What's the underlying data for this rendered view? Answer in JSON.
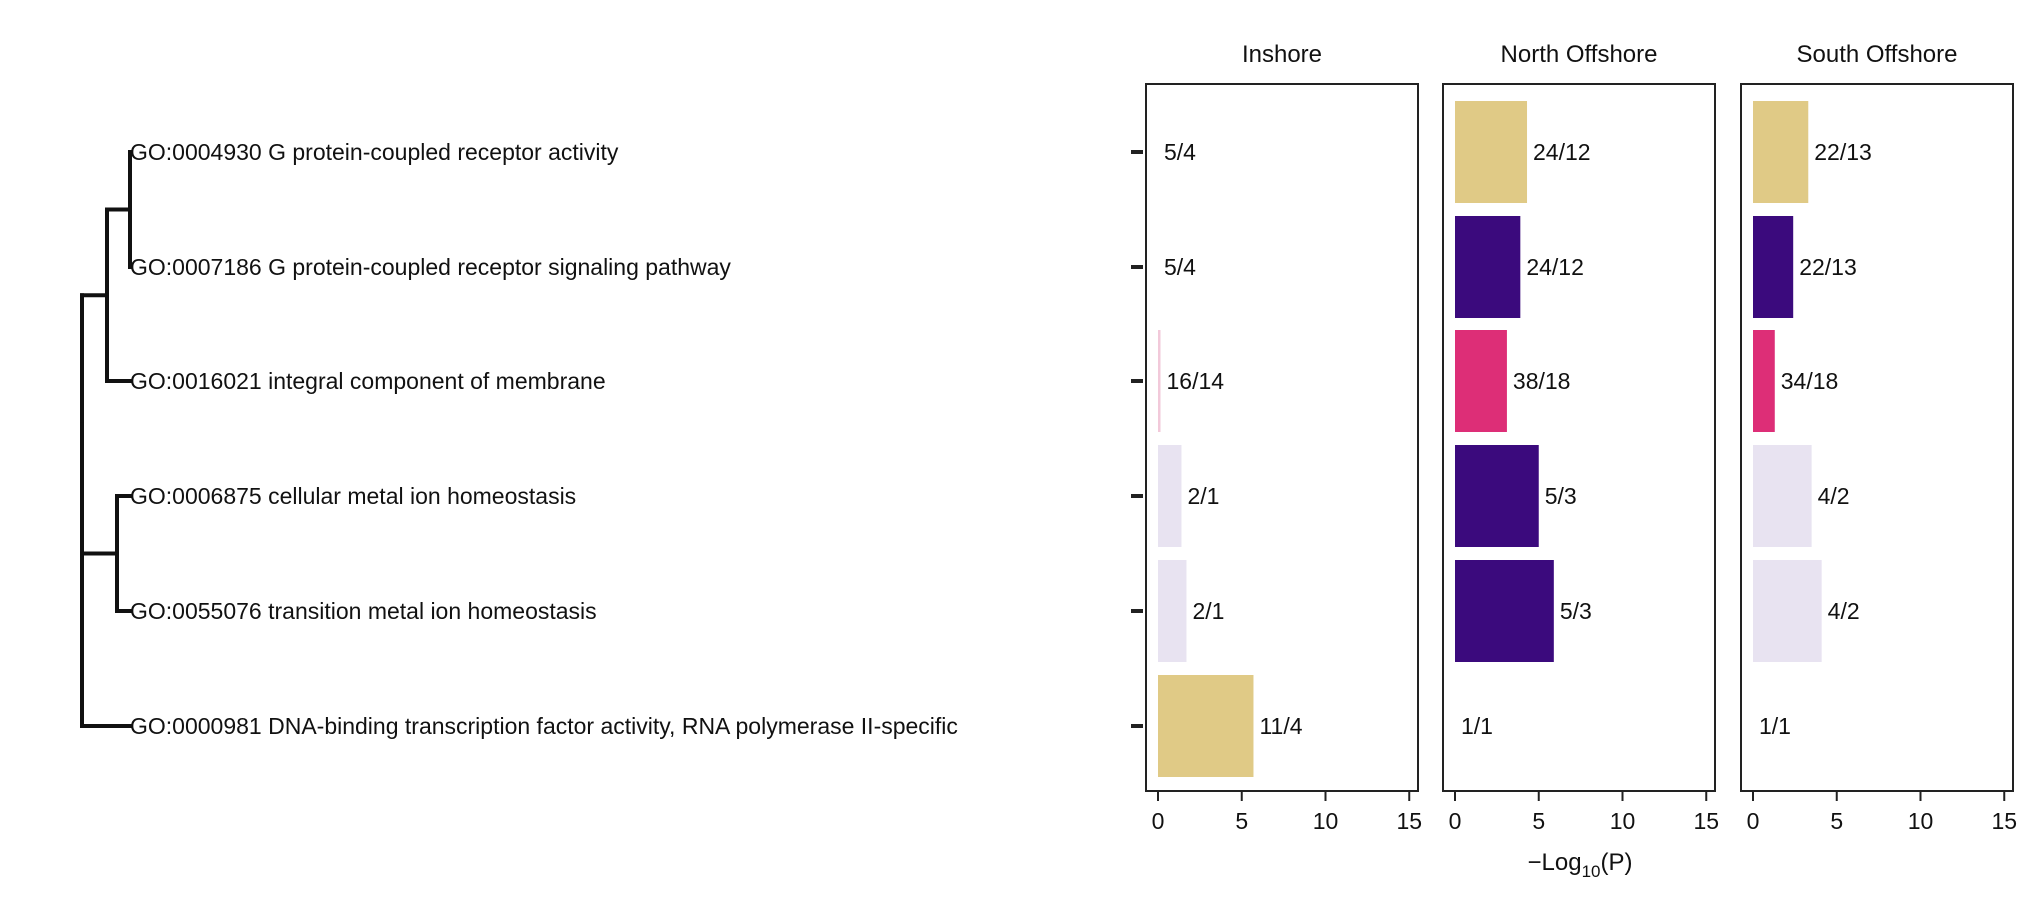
{
  "chart_data": {
    "type": "bar",
    "orientation": "horizontal",
    "categories": [
      "GO:0004930 G protein-coupled receptor activity",
      "GO:0007186 G protein-coupled receptor signaling pathway",
      "GO:0016021 integral component of membrane",
      "GO:0006875 cellular metal ion homeostasis",
      "GO:0055076 transition metal ion homeostasis",
      "GO:0000981 DNA-binding transcription factor activity, RNA polymerase II-specific"
    ],
    "xlabel": "- Log10(P)",
    "xlabel_parts": {
      "prefix": "−Log",
      "sub": "10",
      "suffix": "(P)"
    },
    "xlim": [
      0,
      15
    ],
    "xticks": [
      0,
      5,
      10,
      15
    ],
    "xtick_labels": [
      "0",
      "5",
      "10",
      "15"
    ],
    "panels": [
      {
        "title": "Inshore",
        "values": [
          0,
          0,
          0.15,
          1.4,
          1.7,
          5.7
        ],
        "labels": [
          "5/4",
          "5/4",
          "16/14",
          "2/1",
          "2/1",
          "11/4"
        ],
        "colors": [
          "#e0ca86",
          "#3b0a7d",
          "#f2c9da",
          "#e8e3f1",
          "#e8e3f1",
          "#e0ca86"
        ]
      },
      {
        "title": "North Offshore",
        "values": [
          4.3,
          3.9,
          3.1,
          5.0,
          5.9,
          0
        ],
        "labels": [
          "24/12",
          "24/12",
          "38/18",
          "5/3",
          "5/3",
          "1/1"
        ],
        "colors": [
          "#e0ca86",
          "#3b0a7d",
          "#dd2e77",
          "#3b0a7d",
          "#3b0a7d",
          "#e0ca86"
        ]
      },
      {
        "title": "South Offshore",
        "values": [
          3.3,
          2.4,
          1.3,
          3.5,
          4.1,
          0
        ],
        "labels": [
          "22/13",
          "22/13",
          "34/18",
          "4/2",
          "4/2",
          "1/1"
        ],
        "colors": [
          "#e0ca86",
          "#3b0a7d",
          "#dd2e77",
          "#e8e3f1",
          "#e8e3f1",
          "#e0ca86"
        ]
      }
    ],
    "dendrogram": {
      "merges": [
        [
          0,
          1
        ],
        [
          "m0",
          2
        ],
        [
          3,
          4
        ],
        [
          "m1",
          "m2"
        ],
        [
          "m3",
          5
        ]
      ]
    },
    "grid": false,
    "legend": "none"
  }
}
